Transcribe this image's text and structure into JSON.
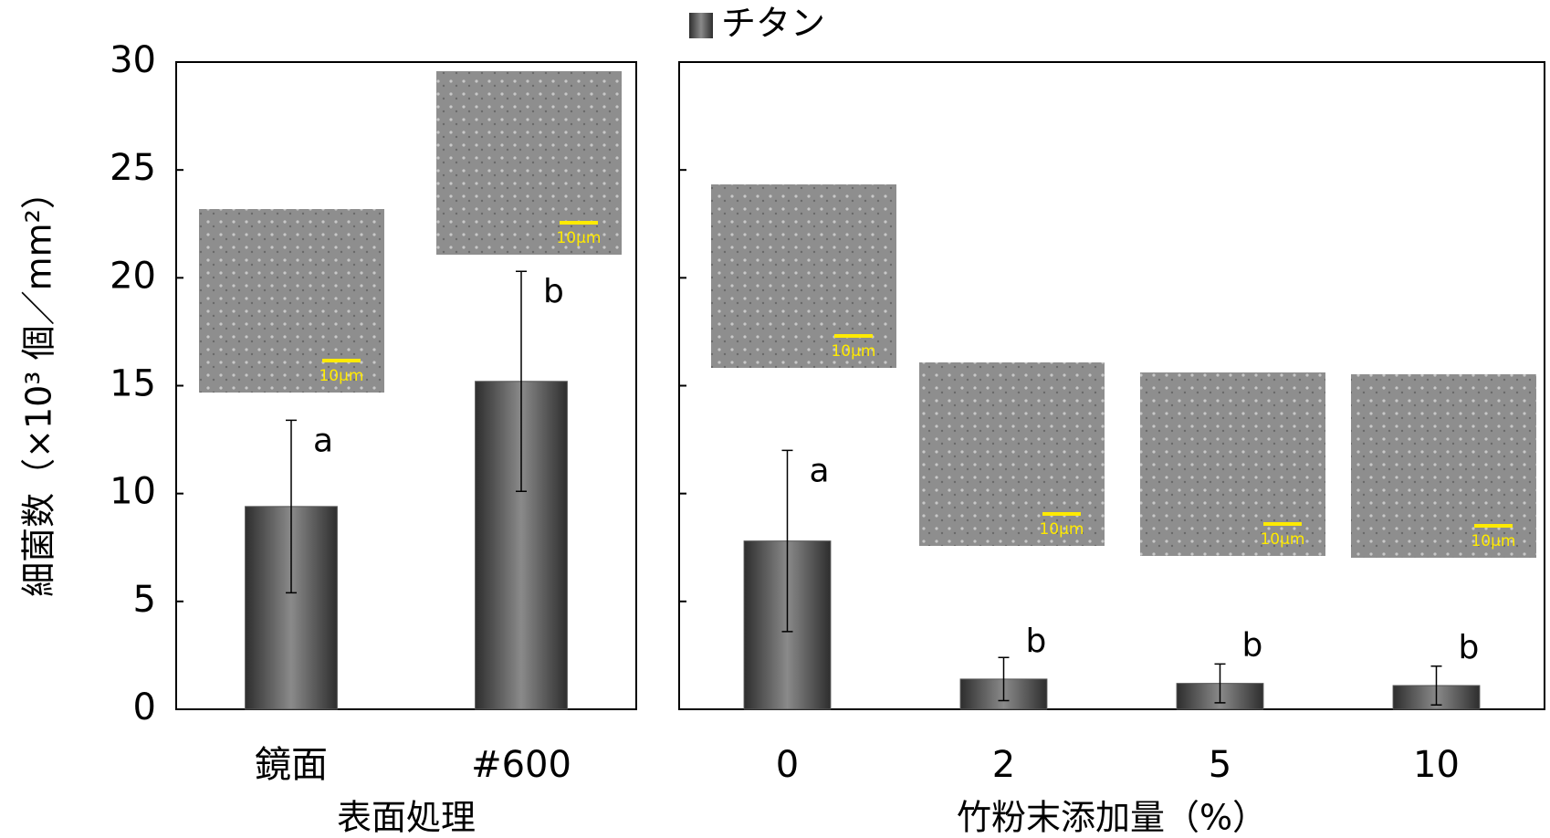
{
  "chart_data": [
    {
      "type": "bar",
      "ylabel": "細菌数（×10³ 個／mm²）",
      "xlabel": "表面処理",
      "categories": [
        "鏡面",
        "#600"
      ],
      "series": [
        {
          "color": "#555555",
          "values": [
            9.4,
            15.2
          ],
          "errors": [
            4.0,
            5.1
          ]
        }
      ],
      "annotations": [
        "a",
        "b"
      ],
      "insets": [
        "10μm",
        "10μm"
      ],
      "ylim": [
        0,
        30
      ],
      "yticks": [
        0,
        5,
        10,
        15,
        20,
        25,
        30
      ]
    },
    {
      "type": "bar",
      "xlabel": "竹粉末添加量（%）",
      "categories": [
        "0",
        "2",
        "5",
        "10"
      ],
      "series": [
        {
          "name": "チタン",
          "color": "#555555",
          "values": [
            7.8,
            1.4,
            1.2,
            1.1
          ],
          "errors": [
            4.2,
            1.0,
            0.9,
            0.9
          ]
        }
      ],
      "annotations": [
        "a",
        "b",
        "b",
        "b"
      ],
      "insets": [
        "10μm",
        "10μm",
        "10μm",
        "10μm"
      ],
      "ylim": [
        0,
        30
      ],
      "yticks": [
        0,
        5,
        10,
        15,
        20,
        25,
        30
      ]
    }
  ]
}
